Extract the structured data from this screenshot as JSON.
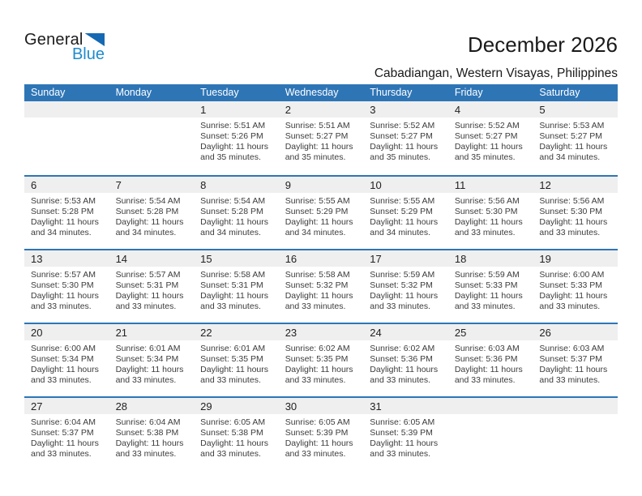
{
  "logo": {
    "part1": "General",
    "part2": "Blue"
  },
  "header": {
    "title": "December 2026",
    "subtitle": "Cabadiangan, Western Visayas, Philippines"
  },
  "colors": {
    "header_bar_blue": "#2E75B6",
    "week_divider_blue": "#2E75B6",
    "date_band_gray": "#EFEFEF",
    "logo_text_blue": "#1E8BCB",
    "logo_triangle_blue": "#1569B3"
  },
  "calendar": {
    "weekdays": [
      "Sunday",
      "Monday",
      "Tuesday",
      "Wednesday",
      "Thursday",
      "Friday",
      "Saturday"
    ],
    "weeks": [
      [
        null,
        null,
        {
          "day": "1",
          "sunrise": "Sunrise: 5:51 AM",
          "sunset": "Sunset: 5:26 PM",
          "daylight": "Daylight: 11 hours and 35 minutes."
        },
        {
          "day": "2",
          "sunrise": "Sunrise: 5:51 AM",
          "sunset": "Sunset: 5:27 PM",
          "daylight": "Daylight: 11 hours and 35 minutes."
        },
        {
          "day": "3",
          "sunrise": "Sunrise: 5:52 AM",
          "sunset": "Sunset: 5:27 PM",
          "daylight": "Daylight: 11 hours and 35 minutes."
        },
        {
          "day": "4",
          "sunrise": "Sunrise: 5:52 AM",
          "sunset": "Sunset: 5:27 PM",
          "daylight": "Daylight: 11 hours and 35 minutes."
        },
        {
          "day": "5",
          "sunrise": "Sunrise: 5:53 AM",
          "sunset": "Sunset: 5:27 PM",
          "daylight": "Daylight: 11 hours and 34 minutes."
        }
      ],
      [
        {
          "day": "6",
          "sunrise": "Sunrise: 5:53 AM",
          "sunset": "Sunset: 5:28 PM",
          "daylight": "Daylight: 11 hours and 34 minutes."
        },
        {
          "day": "7",
          "sunrise": "Sunrise: 5:54 AM",
          "sunset": "Sunset: 5:28 PM",
          "daylight": "Daylight: 11 hours and 34 minutes."
        },
        {
          "day": "8",
          "sunrise": "Sunrise: 5:54 AM",
          "sunset": "Sunset: 5:28 PM",
          "daylight": "Daylight: 11 hours and 34 minutes."
        },
        {
          "day": "9",
          "sunrise": "Sunrise: 5:55 AM",
          "sunset": "Sunset: 5:29 PM",
          "daylight": "Daylight: 11 hours and 34 minutes."
        },
        {
          "day": "10",
          "sunrise": "Sunrise: 5:55 AM",
          "sunset": "Sunset: 5:29 PM",
          "daylight": "Daylight: 11 hours and 34 minutes."
        },
        {
          "day": "11",
          "sunrise": "Sunrise: 5:56 AM",
          "sunset": "Sunset: 5:30 PM",
          "daylight": "Daylight: 11 hours and 33 minutes."
        },
        {
          "day": "12",
          "sunrise": "Sunrise: 5:56 AM",
          "sunset": "Sunset: 5:30 PM",
          "daylight": "Daylight: 11 hours and 33 minutes."
        }
      ],
      [
        {
          "day": "13",
          "sunrise": "Sunrise: 5:57 AM",
          "sunset": "Sunset: 5:30 PM",
          "daylight": "Daylight: 11 hours and 33 minutes."
        },
        {
          "day": "14",
          "sunrise": "Sunrise: 5:57 AM",
          "sunset": "Sunset: 5:31 PM",
          "daylight": "Daylight: 11 hours and 33 minutes."
        },
        {
          "day": "15",
          "sunrise": "Sunrise: 5:58 AM",
          "sunset": "Sunset: 5:31 PM",
          "daylight": "Daylight: 11 hours and 33 minutes."
        },
        {
          "day": "16",
          "sunrise": "Sunrise: 5:58 AM",
          "sunset": "Sunset: 5:32 PM",
          "daylight": "Daylight: 11 hours and 33 minutes."
        },
        {
          "day": "17",
          "sunrise": "Sunrise: 5:59 AM",
          "sunset": "Sunset: 5:32 PM",
          "daylight": "Daylight: 11 hours and 33 minutes."
        },
        {
          "day": "18",
          "sunrise": "Sunrise: 5:59 AM",
          "sunset": "Sunset: 5:33 PM",
          "daylight": "Daylight: 11 hours and 33 minutes."
        },
        {
          "day": "19",
          "sunrise": "Sunrise: 6:00 AM",
          "sunset": "Sunset: 5:33 PM",
          "daylight": "Daylight: 11 hours and 33 minutes."
        }
      ],
      [
        {
          "day": "20",
          "sunrise": "Sunrise: 6:00 AM",
          "sunset": "Sunset: 5:34 PM",
          "daylight": "Daylight: 11 hours and 33 minutes."
        },
        {
          "day": "21",
          "sunrise": "Sunrise: 6:01 AM",
          "sunset": "Sunset: 5:34 PM",
          "daylight": "Daylight: 11 hours and 33 minutes."
        },
        {
          "day": "22",
          "sunrise": "Sunrise: 6:01 AM",
          "sunset": "Sunset: 5:35 PM",
          "daylight": "Daylight: 11 hours and 33 minutes."
        },
        {
          "day": "23",
          "sunrise": "Sunrise: 6:02 AM",
          "sunset": "Sunset: 5:35 PM",
          "daylight": "Daylight: 11 hours and 33 minutes."
        },
        {
          "day": "24",
          "sunrise": "Sunrise: 6:02 AM",
          "sunset": "Sunset: 5:36 PM",
          "daylight": "Daylight: 11 hours and 33 minutes."
        },
        {
          "day": "25",
          "sunrise": "Sunrise: 6:03 AM",
          "sunset": "Sunset: 5:36 PM",
          "daylight": "Daylight: 11 hours and 33 minutes."
        },
        {
          "day": "26",
          "sunrise": "Sunrise: 6:03 AM",
          "sunset": "Sunset: 5:37 PM",
          "daylight": "Daylight: 11 hours and 33 minutes."
        }
      ],
      [
        {
          "day": "27",
          "sunrise": "Sunrise: 6:04 AM",
          "sunset": "Sunset: 5:37 PM",
          "daylight": "Daylight: 11 hours and 33 minutes."
        },
        {
          "day": "28",
          "sunrise": "Sunrise: 6:04 AM",
          "sunset": "Sunset: 5:38 PM",
          "daylight": "Daylight: 11 hours and 33 minutes."
        },
        {
          "day": "29",
          "sunrise": "Sunrise: 6:05 AM",
          "sunset": "Sunset: 5:38 PM",
          "daylight": "Daylight: 11 hours and 33 minutes."
        },
        {
          "day": "30",
          "sunrise": "Sunrise: 6:05 AM",
          "sunset": "Sunset: 5:39 PM",
          "daylight": "Daylight: 11 hours and 33 minutes."
        },
        {
          "day": "31",
          "sunrise": "Sunrise: 6:05 AM",
          "sunset": "Sunset: 5:39 PM",
          "daylight": "Daylight: 11 hours and 33 minutes."
        },
        null,
        null
      ]
    ]
  }
}
